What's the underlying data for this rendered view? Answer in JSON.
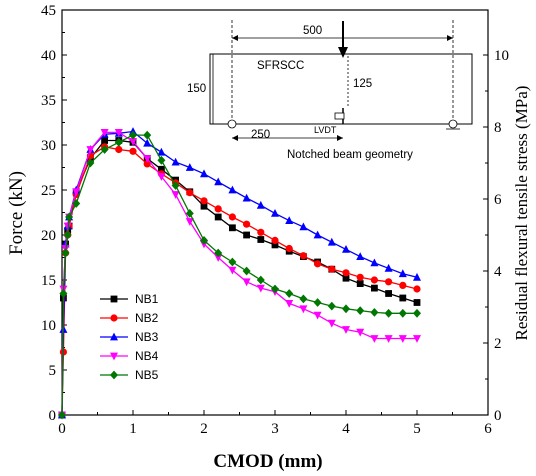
{
  "chart_data": {
    "type": "line",
    "xlabel": "CMOD (mm)",
    "ylabel": "Force (kN)",
    "ylabel_right": "Residual flexural tensile stress (MPa)",
    "xlim": [
      0,
      6
    ],
    "ylim": [
      0,
      45
    ],
    "ylim_right": [
      0,
      11.25
    ],
    "x_ticks": [
      0,
      1,
      2,
      3,
      4,
      5,
      6
    ],
    "y_ticks": [
      0,
      5,
      10,
      15,
      20,
      25,
      30,
      35,
      40,
      45
    ],
    "y_ticks_right": [
      0,
      2,
      4,
      6,
      8,
      10
    ],
    "legend_position": "lower-left",
    "series": [
      {
        "name": "NB1",
        "color": "#000000",
        "marker": "square",
        "x": [
          0,
          0.02,
          0.05,
          0.08,
          0.1,
          0.2,
          0.4,
          0.6,
          0.8,
          1.0,
          1.2,
          1.4,
          1.6,
          1.8,
          2.0,
          2.2,
          2.4,
          2.6,
          2.8,
          3.0,
          3.2,
          3.4,
          3.6,
          3.8,
          4.0,
          4.2,
          4.4,
          4.6,
          4.8,
          5.0
        ],
        "values": [
          0,
          13,
          19,
          20.5,
          21,
          24.8,
          28.5,
          30.5,
          30.5,
          30.3,
          28.5,
          27.3,
          26.1,
          24.8,
          23.2,
          22,
          20.8,
          20,
          19.5,
          18.9,
          18.2,
          17.6,
          17,
          16.2,
          15.2,
          14.6,
          14.1,
          13.5,
          13,
          12.5
        ]
      },
      {
        "name": "NB2",
        "color": "#ff0000",
        "marker": "circle",
        "x": [
          0,
          0.02,
          0.05,
          0.08,
          0.1,
          0.2,
          0.4,
          0.6,
          0.8,
          1.0,
          1.2,
          1.4,
          1.6,
          1.8,
          2.0,
          2.2,
          2.4,
          2.6,
          2.8,
          3.0,
          3.2,
          3.4,
          3.6,
          3.8,
          4.0,
          4.2,
          4.4,
          4.6,
          4.8,
          5.0
        ],
        "values": [
          0,
          7,
          18,
          20,
          21,
          24.5,
          28.8,
          29.8,
          29.5,
          29.3,
          27.9,
          26.8,
          25.8,
          24.7,
          23.8,
          22.9,
          22,
          21.2,
          20.3,
          19.4,
          18.5,
          17.7,
          16.8,
          16.2,
          15.8,
          15.3,
          15,
          14.8,
          14.4,
          14
        ]
      },
      {
        "name": "NB3",
        "color": "#0000ff",
        "marker": "triangle-up",
        "x": [
          0,
          0.02,
          0.05,
          0.08,
          0.1,
          0.2,
          0.4,
          0.6,
          0.8,
          1.0,
          1.2,
          1.4,
          1.6,
          1.8,
          2.0,
          2.2,
          2.4,
          2.6,
          2.8,
          3.0,
          3.2,
          3.4,
          3.6,
          3.8,
          4.0,
          4.2,
          4.4,
          4.6,
          4.8,
          5.0
        ],
        "values": [
          0,
          9.5,
          19,
          21,
          22,
          25,
          29.5,
          31.2,
          31.3,
          31.5,
          30.2,
          29.2,
          28.1,
          27.5,
          26.8,
          25.9,
          25,
          24.1,
          23.3,
          22.4,
          21.6,
          20.9,
          20,
          19.2,
          18.4,
          17.6,
          16.9,
          16.3,
          15.7,
          15.3
        ]
      },
      {
        "name": "NB4",
        "color": "#ff00ff",
        "marker": "triangle-down",
        "x": [
          0,
          0.02,
          0.05,
          0.08,
          0.1,
          0.2,
          0.4,
          0.6,
          0.8,
          1.0,
          1.2,
          1.4,
          1.6,
          1.8,
          2.0,
          2.2,
          2.4,
          2.6,
          2.8,
          3.0,
          3.2,
          3.4,
          3.6,
          3.8,
          4.0,
          4.2,
          4.4,
          4.6,
          4.8,
          5.0
        ],
        "values": [
          0,
          14,
          18.5,
          21,
          22,
          24.8,
          29.5,
          31.4,
          31.4,
          30.4,
          28.5,
          26.5,
          24.5,
          21.5,
          19,
          17.5,
          16.1,
          14.8,
          14.1,
          13.7,
          12.4,
          11.8,
          11.1,
          10.2,
          9.5,
          9.2,
          8.5,
          8.5,
          8.5,
          8.5
        ]
      },
      {
        "name": "NB5",
        "color": "#007700",
        "marker": "diamond",
        "x": [
          0,
          0.02,
          0.05,
          0.08,
          0.1,
          0.2,
          0.4,
          0.6,
          0.8,
          1.0,
          1.2,
          1.4,
          1.6,
          1.8,
          2.0,
          2.2,
          2.4,
          2.6,
          2.8,
          3.0,
          3.2,
          3.4,
          3.6,
          3.8,
          4.0,
          4.2,
          4.4,
          4.6,
          4.8,
          5.0
        ],
        "values": [
          0,
          13.5,
          18,
          20,
          22,
          23.5,
          28,
          29.5,
          30.3,
          31.1,
          31.1,
          28.3,
          25.5,
          22.4,
          19.4,
          18,
          17,
          16,
          15,
          14,
          13.5,
          12.9,
          12.5,
          12.1,
          11.8,
          11.6,
          11.4,
          11.3,
          11.3,
          11.3
        ]
      }
    ],
    "inset": {
      "title": "SFRSCC",
      "caption": "Notched beam geometry",
      "dim_length": "500",
      "dim_height": "150",
      "dim_ligament": "125",
      "dim_half_span": "250",
      "sensor_label": "LVDT"
    }
  }
}
